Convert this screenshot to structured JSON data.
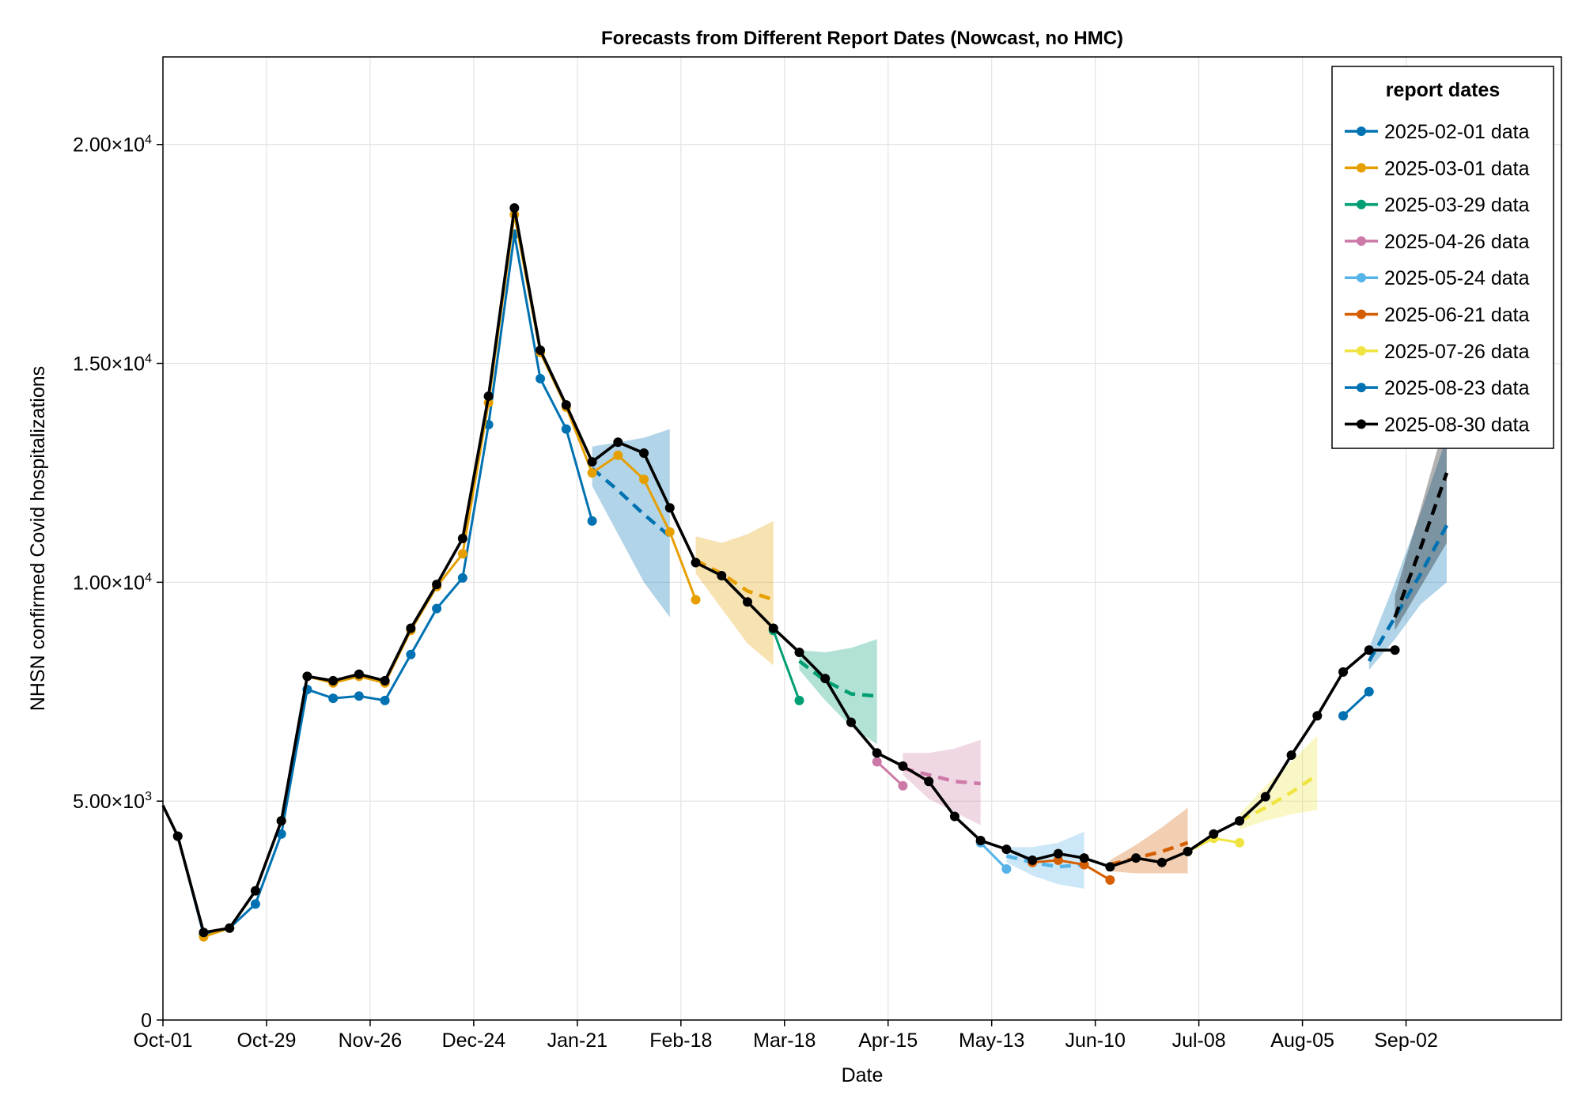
{
  "chart_data": {
    "type": "line",
    "title": "Forecasts from Different Report Dates (Nowcast, no HMC)",
    "xlabel": "Date",
    "ylabel": "NHSN confirmed Covid hospitalizations",
    "x_start": "2024-10-01",
    "xlim_days": [
      0,
      378
    ],
    "ylim": [
      0,
      22000
    ],
    "x_ticks": [
      {
        "day": 0,
        "label": "Oct-01"
      },
      {
        "day": 28,
        "label": "Oct-29"
      },
      {
        "day": 56,
        "label": "Nov-26"
      },
      {
        "day": 84,
        "label": "Dec-24"
      },
      {
        "day": 112,
        "label": "Jan-21"
      },
      {
        "day": 140,
        "label": "Feb-18"
      },
      {
        "day": 168,
        "label": "Mar-18"
      },
      {
        "day": 196,
        "label": "Apr-15"
      },
      {
        "day": 224,
        "label": "May-13"
      },
      {
        "day": 252,
        "label": "Jun-10"
      },
      {
        "day": 280,
        "label": "Jul-08"
      },
      {
        "day": 308,
        "label": "Aug-05"
      },
      {
        "day": 336,
        "label": "Sep-02"
      }
    ],
    "y_ticks": [
      {
        "value": 0,
        "label": "0",
        "sup": ""
      },
      {
        "value": 5000,
        "label": "5.00×10",
        "sup": "3"
      },
      {
        "value": 10000,
        "label": "1.00×10",
        "sup": "4"
      },
      {
        "value": 15000,
        "label": "1.50×10",
        "sup": "4"
      },
      {
        "value": 20000,
        "label": "2.00×10",
        "sup": "4"
      }
    ],
    "grid": true,
    "legend": {
      "title": "report dates",
      "position": "top-right"
    },
    "series": [
      {
        "name": "2025-02-01 data",
        "color": "#0072b2",
        "x": [
          4,
          11,
          18,
          25,
          32,
          39,
          46,
          53,
          60,
          67,
          74,
          81,
          88,
          95,
          102,
          109,
          116
        ],
        "values": [
          4200,
          1950,
          2100,
          2650,
          4250,
          7550,
          7350,
          7400,
          7300,
          8350,
          9400,
          10100,
          13600,
          17950,
          14650,
          13500,
          11400
        ],
        "forecast": {
          "x": [
            116,
            123,
            130,
            137
          ],
          "mean": [
            12600,
            12100,
            11550,
            11050
          ],
          "lower": [
            12200,
            11100,
            10000,
            9200
          ],
          "upper": [
            13100,
            13200,
            13300,
            13500
          ]
        }
      },
      {
        "name": "2025-03-01 data",
        "color": "#e69f00",
        "x": [
          11,
          18,
          25,
          32,
          39,
          46,
          53,
          60,
          67,
          74,
          81,
          88,
          95,
          102,
          109,
          116,
          123,
          130,
          137,
          144
        ],
        "values": [
          1900,
          2100,
          2950,
          4550,
          7850,
          7700,
          7850,
          7700,
          8900,
          9900,
          10650,
          14100,
          18400,
          15250,
          14000,
          12500,
          12900,
          12350,
          11150,
          9600
        ],
        "forecast": {
          "x": [
            144,
            151,
            158,
            165
          ],
          "mean": [
            10500,
            10200,
            9800,
            9600
          ],
          "lower": [
            10200,
            9400,
            8600,
            8100
          ],
          "upper": [
            11050,
            10900,
            11100,
            11400
          ]
        }
      },
      {
        "name": "2025-03-29 data",
        "color": "#009e73",
        "x": [
          165,
          172
        ],
        "values": [
          8900,
          7300
        ],
        "forecast": {
          "x": [
            172,
            179,
            186,
            193
          ],
          "mean": [
            8200,
            7750,
            7450,
            7400
          ],
          "lower": [
            8000,
            7300,
            6700,
            6300
          ],
          "upper": [
            8450,
            8400,
            8500,
            8700
          ]
        }
      },
      {
        "name": "2025-04-26 data",
        "color": "#cc79a7",
        "x": [
          193,
          200
        ],
        "values": [
          5900,
          5350
        ],
        "forecast": {
          "x": [
            200,
            207,
            214,
            221
          ],
          "mean": [
            5750,
            5600,
            5450,
            5400
          ],
          "lower": [
            5600,
            5050,
            4750,
            4450
          ],
          "upper": [
            6100,
            6100,
            6200,
            6400
          ]
        }
      },
      {
        "name": "2025-05-24 data",
        "color": "#56b4e9",
        "x": [
          221,
          228
        ],
        "values": [
          4050,
          3450
        ],
        "forecast": {
          "x": [
            228,
            235,
            242,
            249
          ],
          "mean": [
            3750,
            3600,
            3500,
            3550
          ],
          "lower": [
            3600,
            3300,
            3100,
            3000
          ],
          "upper": [
            3950,
            3950,
            4050,
            4300
          ]
        }
      },
      {
        "name": "2025-06-21 data",
        "color": "#d55e00",
        "x": [
          235,
          242,
          249,
          256
        ],
        "values": [
          3600,
          3650,
          3550,
          3200
        ],
        "forecast": {
          "x": [
            256,
            263,
            270,
            277
          ],
          "mean": [
            3550,
            3700,
            3850,
            4050
          ],
          "lower": [
            3400,
            3350,
            3350,
            3350
          ],
          "upper": [
            3650,
            4000,
            4400,
            4850
          ]
        }
      },
      {
        "name": "2025-07-26 data",
        "color": "#f0e442",
        "x": [
          277,
          284,
          291
        ],
        "values": [
          3850,
          4150,
          4050
        ],
        "forecast": {
          "x": [
            291,
            298,
            305,
            312
          ],
          "mean": [
            4550,
            4850,
            5200,
            5600
          ],
          "lower": [
            4350,
            4550,
            4700,
            4800
          ],
          "upper": [
            4700,
            5350,
            5900,
            6500
          ]
        }
      },
      {
        "name": "2025-08-23 data",
        "color": "#0072b2",
        "x": [
          319,
          326
        ],
        "values": [
          6950,
          7500
        ],
        "forecast": {
          "x": [
            326,
            333,
            340,
            347
          ],
          "mean": [
            8200,
            9200,
            10200,
            11300
          ],
          "lower": [
            8000,
            8700,
            9500,
            10000
          ],
          "upper": [
            8500,
            10000,
            11600,
            13300
          ]
        }
      },
      {
        "name": "2025-08-30 data",
        "color": "#000000",
        "x": [
          0,
          4,
          11,
          18,
          25,
          32,
          39,
          46,
          53,
          60,
          67,
          74,
          81,
          88,
          95,
          102,
          109,
          116,
          123,
          130,
          137,
          144,
          151,
          158,
          165,
          172,
          179,
          186,
          193,
          200,
          207,
          214,
          221,
          228,
          235,
          242,
          249,
          256,
          263,
          270,
          277,
          284,
          291,
          298,
          305,
          312,
          319,
          326,
          333
        ],
        "values": [
          4900,
          4200,
          2000,
          2100,
          2950,
          4550,
          7850,
          7750,
          7900,
          7750,
          8950,
          9950,
          11000,
          14250,
          18550,
          15300,
          14050,
          12750,
          13200,
          12950,
          11700,
          10450,
          10150,
          9550,
          8950,
          8400,
          7800,
          6800,
          6100,
          5800,
          5450,
          4650,
          4100,
          3900,
          3650,
          3800,
          3700,
          3500,
          3700,
          3600,
          3850,
          4250,
          4550,
          5100,
          6050,
          6950,
          7950,
          8450,
          8450
        ],
        "forecast": {
          "x": [
            333,
            340,
            347
          ],
          "mean": [
            9200,
            10800,
            12500
          ],
          "lower": [
            8900,
            9900,
            10900
          ],
          "upper": [
            9700,
            11700,
            13800
          ]
        }
      }
    ]
  }
}
